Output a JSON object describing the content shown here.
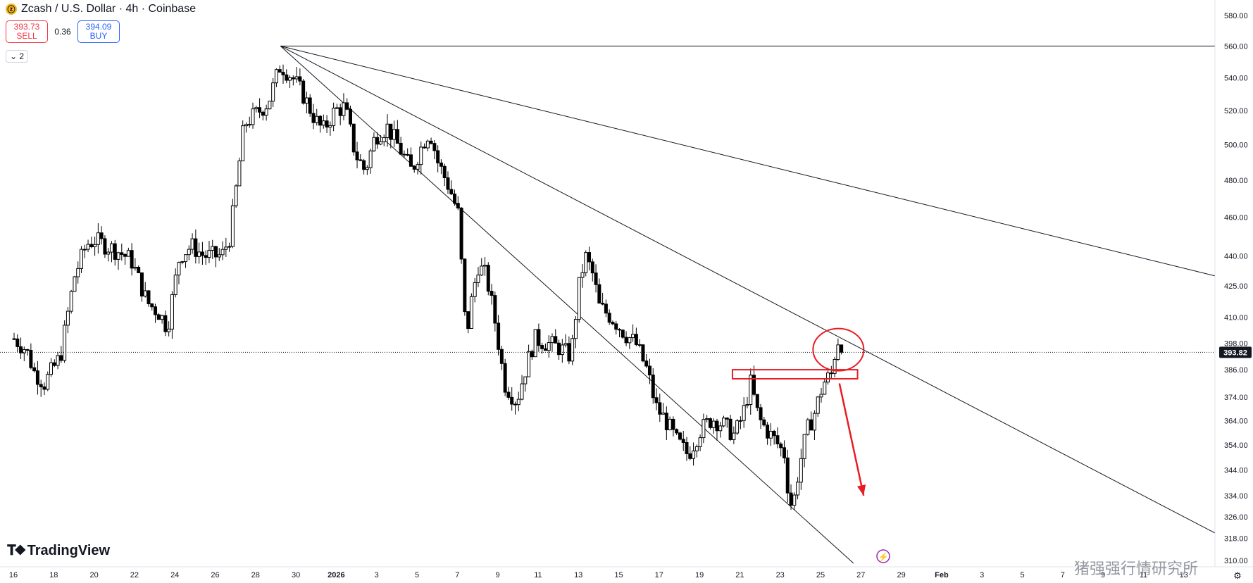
{
  "header": {
    "coin_icon": "zcash-coin-icon",
    "title": "Zcash / U.S. Dollar · 4h · Coinbase"
  },
  "trade": {
    "sell_price": "393.73",
    "sell_label": "SELL",
    "spread": "0.36",
    "buy_price": "394.09",
    "buy_label": "BUY"
  },
  "collapse_label": "2",
  "logo_text": "TradingView",
  "watermark": "猪强强行情研究所",
  "colors": {
    "candle": "#000000",
    "drawing_red": "#e81c24",
    "line": "#131722",
    "axis_text": "#131722",
    "price_tag_bg": "#131722"
  },
  "chart_data": {
    "type": "candlestick",
    "symbol": "Zcash / U.S. Dollar",
    "interval": "4h",
    "ylim": [
      309,
      580
    ],
    "y_scale": "log",
    "y_ticks": [
      "580.00",
      "560.00",
      "540.00",
      "520.00",
      "500.00",
      "480.00",
      "460.00",
      "440.00",
      "425.00",
      "410.00",
      "398.00",
      "386.00",
      "374.00",
      "364.00",
      "354.00",
      "344.00",
      "334.00",
      "326.00",
      "318.00",
      "310.00"
    ],
    "x_ticks": [
      "16",
      "18",
      "20",
      "22",
      "24",
      "26",
      "28",
      "30",
      "2026",
      "3",
      "5",
      "7",
      "9",
      "11",
      "13",
      "15",
      "17",
      "19",
      "21",
      "23",
      "25",
      "27",
      "29",
      "Feb",
      "3",
      "5",
      "7",
      "9",
      "11",
      "13"
    ],
    "current_price": "393.82",
    "close_path": [
      {
        "day": 0,
        "price": 400
      },
      {
        "day": 0.6,
        "price": 395
      },
      {
        "day": 1,
        "price": 385
      },
      {
        "day": 1.5,
        "price": 380
      },
      {
        "day": 2.3,
        "price": 392
      },
      {
        "day": 3,
        "price": 430
      },
      {
        "day": 3.6,
        "price": 446
      },
      {
        "day": 4,
        "price": 448
      },
      {
        "day": 5.2,
        "price": 442
      },
      {
        "day": 5.8,
        "price": 438
      },
      {
        "day": 6.6,
        "price": 417
      },
      {
        "day": 7.2,
        "price": 412
      },
      {
        "day": 7.6,
        "price": 405
      },
      {
        "day": 8.2,
        "price": 440
      },
      {
        "day": 8.8,
        "price": 445
      },
      {
        "day": 9.4,
        "price": 440
      },
      {
        "day": 10.3,
        "price": 440
      },
      {
        "day": 10.7,
        "price": 450
      },
      {
        "day": 11,
        "price": 475
      },
      {
        "day": 11.4,
        "price": 512
      },
      {
        "day": 12,
        "price": 518
      },
      {
        "day": 12.6,
        "price": 525
      },
      {
        "day": 13.2,
        "price": 548
      },
      {
        "day": 13.8,
        "price": 540
      },
      {
        "day": 14.3,
        "price": 530
      },
      {
        "day": 14.9,
        "price": 515
      },
      {
        "day": 15.3,
        "price": 508
      },
      {
        "day": 15.9,
        "price": 520
      },
      {
        "day": 16.4,
        "price": 522
      },
      {
        "day": 16.9,
        "price": 495
      },
      {
        "day": 17.4,
        "price": 485
      },
      {
        "day": 17.9,
        "price": 505
      },
      {
        "day": 18.5,
        "price": 510
      },
      {
        "day": 19.1,
        "price": 498
      },
      {
        "day": 19.7,
        "price": 485
      },
      {
        "day": 20.3,
        "price": 502
      },
      {
        "day": 20.6,
        "price": 508
      },
      {
        "day": 21,
        "price": 490
      },
      {
        "day": 21.6,
        "price": 475
      },
      {
        "day": 22,
        "price": 462
      },
      {
        "day": 22.4,
        "price": 400
      },
      {
        "day": 22.7,
        "price": 420
      },
      {
        "day": 23,
        "price": 435
      },
      {
        "day": 23.4,
        "price": 430
      },
      {
        "day": 23.8,
        "price": 410
      },
      {
        "day": 24.3,
        "price": 380
      },
      {
        "day": 24.9,
        "price": 372
      },
      {
        "day": 25.3,
        "price": 385
      },
      {
        "day": 25.8,
        "price": 400
      },
      {
        "day": 26.4,
        "price": 398
      },
      {
        "day": 27,
        "price": 396
      },
      {
        "day": 27.6,
        "price": 392
      },
      {
        "day": 28,
        "price": 425
      },
      {
        "day": 28.3,
        "price": 440
      },
      {
        "day": 28.7,
        "price": 430
      },
      {
        "day": 29,
        "price": 415
      },
      {
        "day": 29.6,
        "price": 410
      },
      {
        "day": 30.3,
        "price": 402
      },
      {
        "day": 30.8,
        "price": 398
      },
      {
        "day": 31.4,
        "price": 385
      },
      {
        "day": 31.8,
        "price": 370
      },
      {
        "day": 32.3,
        "price": 364
      },
      {
        "day": 32.8,
        "price": 356
      },
      {
        "day": 33.4,
        "price": 350
      },
      {
        "day": 34,
        "price": 360
      },
      {
        "day": 34.6,
        "price": 365
      },
      {
        "day": 35.2,
        "price": 362
      },
      {
        "day": 35.7,
        "price": 358
      },
      {
        "day": 36.1,
        "price": 366
      },
      {
        "day": 36.5,
        "price": 380
      },
      {
        "day": 36.9,
        "price": 365
      },
      {
        "day": 37.3,
        "price": 360
      },
      {
        "day": 37.7,
        "price": 356
      },
      {
        "day": 38.2,
        "price": 350
      },
      {
        "day": 38.4,
        "price": 332
      },
      {
        "day": 38.6,
        "price": 330
      },
      {
        "day": 38.9,
        "price": 345
      },
      {
        "day": 39.3,
        "price": 360
      },
      {
        "day": 39.7,
        "price": 368
      },
      {
        "day": 40.1,
        "price": 380
      },
      {
        "day": 40.5,
        "price": 384
      },
      {
        "day": 40.8,
        "price": 400
      },
      {
        "day": 41.1,
        "price": 393.82
      }
    ],
    "annotations": {
      "resistance_box": {
        "y_top": 386,
        "y_bottom": 382,
        "x_start_day": 35.6,
        "x_end_day": 41.8
      },
      "circle": {
        "center_day": 40.85,
        "center_price": 395
      },
      "arrow": {
        "from_day": 40.9,
        "from_price": 380,
        "to_day": 42.1,
        "to_price": 334
      },
      "trend_lines": [
        {
          "from_day": 13.2,
          "from_price": 560,
          "to_day": 59.5,
          "to_price": 560
        },
        {
          "from_day": 13.2,
          "from_price": 560,
          "to_day": 59.5,
          "to_price": 430
        },
        {
          "from_day": 13.2,
          "from_price": 560,
          "to_day": 59.5,
          "to_price": 320
        },
        {
          "from_day": 13.2,
          "from_price": 560,
          "to_day": 41.6,
          "to_price": 309
        }
      ]
    }
  }
}
